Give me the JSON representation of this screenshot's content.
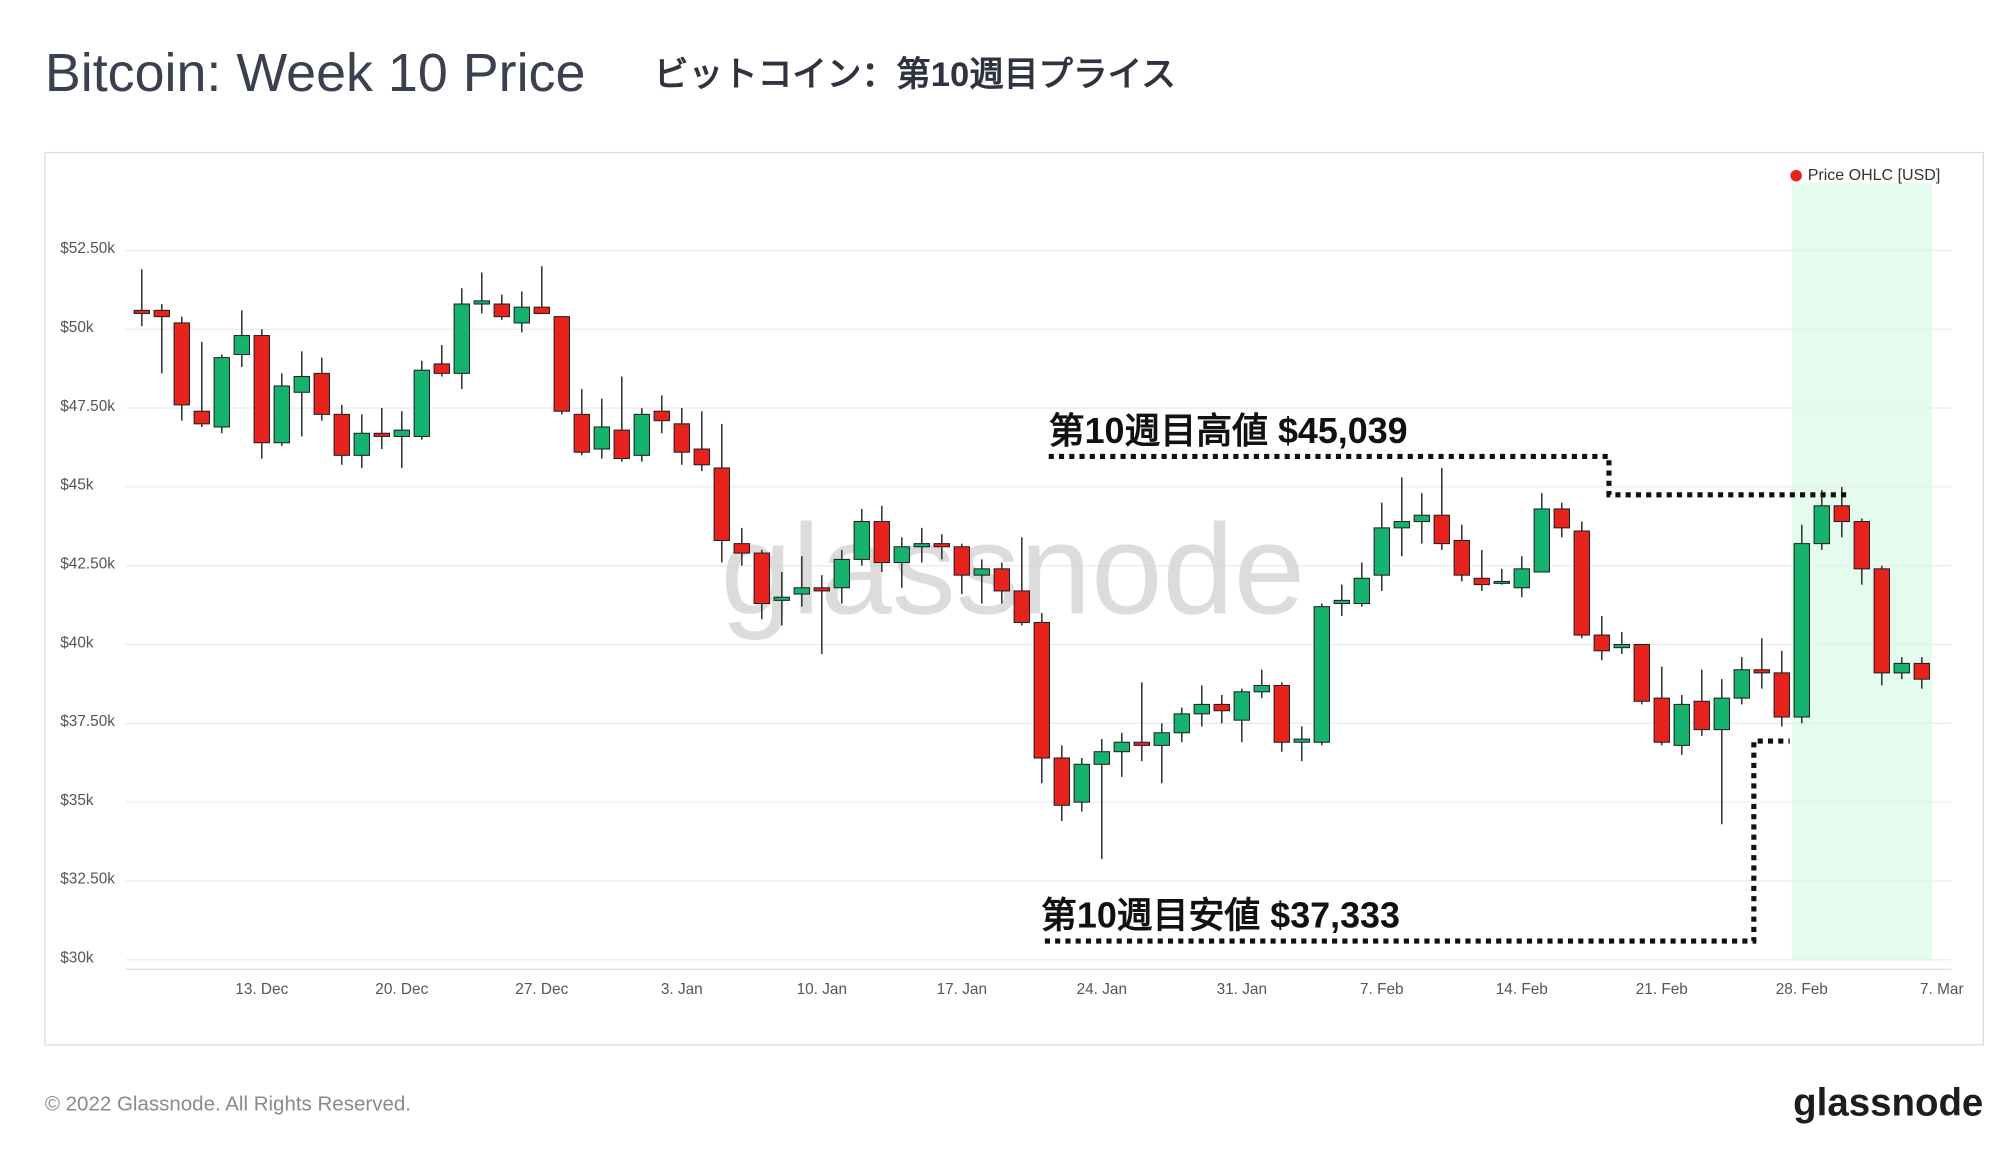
{
  "chart_data": {
    "type": "candlestick",
    "title": "Bitcoin: Week 10 Price",
    "subtitle": "ビットコイン：第10週目プライス",
    "watermark": "glassnode",
    "categories": [
      null,
      null,
      null,
      null,
      null,
      null,
      "13. Dec",
      null,
      null,
      null,
      null,
      null,
      null,
      "20. Dec",
      null,
      null,
      null,
      null,
      null,
      null,
      "27. Dec",
      null,
      null,
      null,
      null,
      null,
      null,
      "3. Jan",
      null,
      null,
      null,
      null,
      null,
      null,
      "10. Jan",
      null,
      null,
      null,
      null,
      null,
      null,
      "17. Jan",
      null,
      null,
      null,
      null,
      null,
      null,
      "24. Jan",
      null,
      null,
      null,
      null,
      null,
      null,
      "31. Jan",
      null,
      null,
      null,
      null,
      null,
      null,
      "7. Feb",
      null,
      null,
      null,
      null,
      null,
      null,
      "14. Feb",
      null,
      null,
      null,
      null,
      null,
      null,
      "21. Feb",
      null,
      null,
      null,
      null,
      null,
      null,
      "28. Feb",
      null,
      null,
      null,
      null,
      null,
      null,
      "7. Mar"
    ],
    "series": [
      {
        "name": "Price OHLC [USD]",
        "color": "#e8231e",
        "up_color": "#16b36e",
        "down_color": "#e8231e",
        "open": [
          50600,
          50600,
          50200,
          47400,
          46900,
          49200,
          49800,
          46400,
          48000,
          48600,
          47300,
          46000,
          46700,
          46600,
          46600,
          48900,
          48600,
          50800,
          50800,
          50200,
          50700,
          50400,
          47300,
          46200,
          46800,
          46000,
          47400,
          47000,
          46200,
          45600,
          43200,
          42900,
          41400,
          41600,
          41800,
          41800,
          42700,
          43900,
          42600,
          43100,
          43200,
          43100,
          42200,
          42400,
          41700,
          40700,
          36400,
          35000,
          36200,
          36600,
          36900,
          36800,
          37200,
          37800,
          38100,
          37600,
          38500,
          38700,
          36900,
          36900,
          41300,
          41300,
          42200,
          43700,
          43900,
          44100,
          43300,
          42100,
          42000,
          41800,
          42300,
          44300,
          43600,
          40300,
          39900,
          40000,
          38300,
          36800,
          38200,
          37300,
          38300,
          39200,
          39100,
          37700,
          43200,
          44400,
          43900,
          42400,
          39100,
          39400,
          null
        ],
        "high": [
          51900,
          50800,
          50400,
          49600,
          49200,
          50600,
          50000,
          48600,
          49300,
          49100,
          47600,
          47300,
          47500,
          47400,
          49000,
          49500,
          51300,
          51800,
          51100,
          51200,
          52000,
          50400,
          48100,
          47800,
          48500,
          47500,
          47900,
          47500,
          47400,
          47000,
          43700,
          43000,
          42300,
          42800,
          42200,
          43000,
          44300,
          44400,
          43400,
          43700,
          43500,
          43200,
          42700,
          42600,
          43400,
          41000,
          36800,
          36400,
          37000,
          37200,
          38800,
          37500,
          38000,
          38700,
          38400,
          38600,
          39200,
          38800,
          37400,
          41300,
          41900,
          42600,
          44500,
          45300,
          44800,
          45600,
          43800,
          43000,
          42400,
          42800,
          44800,
          44500,
          43900,
          40900,
          40400,
          40000,
          39300,
          38400,
          39200,
          38900,
          39600,
          40200,
          39800,
          43800,
          44900,
          45000,
          44000,
          42500,
          39600,
          39600,
          null
        ],
        "low": [
          50100,
          48600,
          47100,
          46900,
          46700,
          48800,
          45900,
          46300,
          46600,
          47100,
          45700,
          45600,
          46200,
          45600,
          46500,
          48500,
          48100,
          50500,
          50300,
          49900,
          50500,
          47300,
          46000,
          45900,
          45800,
          45800,
          46700,
          45700,
          45500,
          42600,
          42500,
          40800,
          40600,
          41200,
          39700,
          41300,
          42500,
          42300,
          41800,
          42600,
          42700,
          41600,
          41300,
          41300,
          40600,
          35600,
          34400,
          34700,
          33200,
          35800,
          36300,
          35600,
          36900,
          37400,
          37500,
          36900,
          38300,
          36600,
          36300,
          36800,
          40900,
          41200,
          41700,
          42800,
          43200,
          43000,
          42000,
          41700,
          41900,
          41500,
          42300,
          43400,
          40200,
          39500,
          39700,
          38100,
          36800,
          36500,
          37100,
          34300,
          38100,
          38600,
          37400,
          37500,
          43000,
          43400,
          41900,
          38700,
          38900,
          38600,
          null
        ],
        "close": [
          50500,
          50400,
          47600,
          47000,
          49100,
          49800,
          46400,
          48200,
          48500,
          47300,
          46000,
          46700,
          46600,
          46800,
          48700,
          48600,
          50800,
          50900,
          50400,
          50700,
          50500,
          47400,
          46100,
          46900,
          45900,
          47300,
          47100,
          46100,
          45700,
          43300,
          42900,
          41300,
          41500,
          41800,
          41700,
          42700,
          43900,
          42600,
          43100,
          43200,
          43100,
          42200,
          42400,
          41700,
          40700,
          36400,
          34900,
          36200,
          36600,
          36900,
          36800,
          37200,
          37800,
          38100,
          37900,
          38500,
          38700,
          36900,
          37000,
          41200,
          41400,
          42100,
          43700,
          43900,
          44100,
          43200,
          42200,
          41900,
          42000,
          42400,
          44300,
          43700,
          40300,
          39800,
          40000,
          38200,
          36900,
          38100,
          37300,
          38300,
          39200,
          39100,
          37700,
          43200,
          44400,
          43900,
          42400,
          39100,
          39400,
          38900,
          null
        ]
      }
    ],
    "ylim": [
      29700,
      54750
    ],
    "yticks": [
      {
        "value": 30000,
        "label": "$30k"
      },
      {
        "value": 32500,
        "label": "$32.50k"
      },
      {
        "value": 35000,
        "label": "$35k"
      },
      {
        "value": 37500,
        "label": "$37.50k"
      },
      {
        "value": 40000,
        "label": "$40k"
      },
      {
        "value": 42500,
        "label": "$42.50k"
      },
      {
        "value": 45000,
        "label": "$45k"
      },
      {
        "value": 47500,
        "label": "$47.50k"
      },
      {
        "value": 50000,
        "label": "$50k"
      },
      {
        "value": 52500,
        "label": "$52.50k"
      }
    ],
    "grid": true,
    "legend": "top-right",
    "annotations": [
      "第10週目高値 $45,039",
      "第10週目安値 $37,333"
    ]
  },
  "footer": {
    "copyright": "© 2022 Glassnode. All Rights Reserved.",
    "logo": "glassnode"
  }
}
